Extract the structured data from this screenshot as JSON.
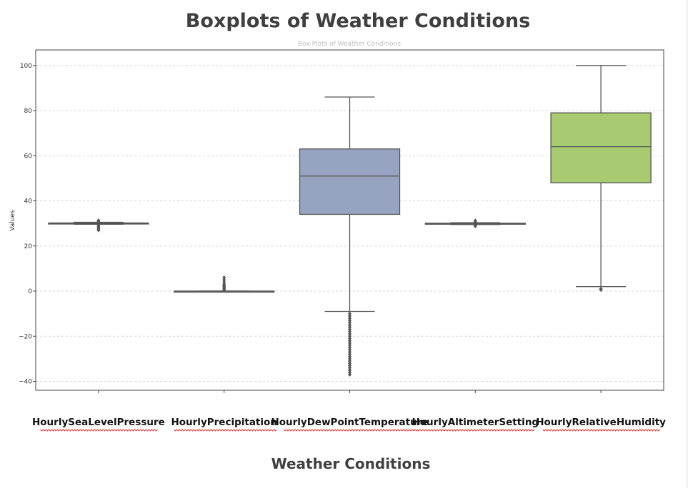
{
  "chart_data": {
    "type": "boxplot",
    "title": "Boxplots of Weather Conditions",
    "subtitle": "Box Plots of Weather Conditions",
    "xlabel": "Weather Conditions",
    "ylabel": "Values",
    "ylim": [
      -43,
      107
    ],
    "yticks": [
      -40,
      -20,
      0,
      20,
      40,
      60,
      80,
      100
    ],
    "grid": true,
    "colors": {
      "box_default": "#8c8c8c",
      "dewpoint": "#97a4c1",
      "humidity": "#a8ca70",
      "line": "#555555",
      "grid": "#d4d4d4"
    },
    "categories": [
      "HourlySeaLevelPressure",
      "HourlyPrecipitation",
      "HourlyDewPointTemperature",
      "HourlyAltimeterSetting",
      "HourlyRelativeHumidity"
    ],
    "boxes": [
      {
        "name": "HourlySeaLevelPressure",
        "whisker_low": 29.6,
        "q1": 29.8,
        "median": 30.0,
        "q3": 30.2,
        "whisker_high": 30.5,
        "outliers": [
          27.0,
          27.5,
          28.0,
          28.5,
          29.0,
          31.0,
          31.3
        ],
        "color": "#8c8c8c"
      },
      {
        "name": "HourlyPrecipitation",
        "whisker_low": 0.0,
        "q1": 0.0,
        "median": 0.0,
        "q3": 0.0,
        "whisker_high": 0.0,
        "outliers": [
          0.5,
          1.0,
          1.5,
          2.0,
          2.5,
          3.0,
          4.0,
          5.0,
          6.0
        ],
        "color": "#8c8c8c"
      },
      {
        "name": "HourlyDewPointTemperature",
        "whisker_low": -9,
        "q1": 34,
        "median": 51,
        "q3": 63,
        "whisker_high": 86,
        "outliers": [
          -10,
          -11,
          -12,
          -13,
          -14,
          -15,
          -16,
          -17,
          -18,
          -19,
          -20,
          -21,
          -22,
          -23,
          -24,
          -25,
          -26,
          -27,
          -28,
          -29,
          -30,
          -31,
          -32,
          -33,
          -34,
          -35,
          -36,
          -37
        ],
        "color": "#97a4c1"
      },
      {
        "name": "HourlyAltimeterSetting",
        "whisker_low": 29.5,
        "q1": 29.8,
        "median": 30.0,
        "q3": 30.1,
        "whisker_high": 30.3,
        "outliers": [
          28.8,
          29.0,
          29.2,
          30.8,
          31.2
        ],
        "color": "#8c8c8c"
      },
      {
        "name": "HourlyRelativeHumidity",
        "whisker_low": 2,
        "q1": 48,
        "median": 64,
        "q3": 79,
        "whisker_high": 100,
        "outliers": [
          1,
          0.6
        ],
        "color": "#a8ca70"
      }
    ]
  }
}
